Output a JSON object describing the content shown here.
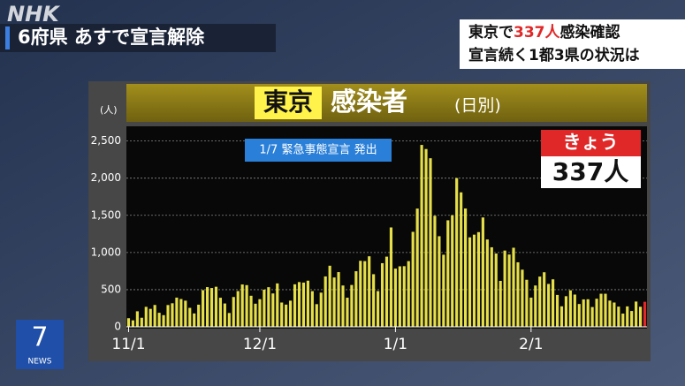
{
  "logo": "NHK",
  "banner": "6府県 あすで宣言解除",
  "headline": {
    "line1": {
      "before": "東京で",
      "highlight": "337人",
      "after": "感染確認"
    },
    "line2": "宣言続く1都3県の状況は"
  },
  "program_logo": {
    "number": "7",
    "label": "NEWS"
  },
  "chart_data": {
    "type": "bar",
    "title": {
      "place": "東京",
      "main": "感染者",
      "sub": "(日別)"
    },
    "y_label": "(人)",
    "annotation": "1/7 緊急事態宣言 発出",
    "badge": {
      "label": "きょう",
      "value": "337人"
    },
    "categories": [
      "11/1",
      null,
      null,
      null,
      null,
      null,
      null,
      null,
      null,
      null,
      null,
      null,
      null,
      null,
      null,
      null,
      null,
      null,
      null,
      null,
      null,
      null,
      null,
      null,
      null,
      null,
      null,
      null,
      null,
      null,
      "12/1",
      null,
      null,
      null,
      null,
      null,
      null,
      null,
      null,
      null,
      null,
      null,
      null,
      null,
      null,
      null,
      null,
      null,
      null,
      null,
      null,
      null,
      null,
      null,
      null,
      null,
      null,
      null,
      null,
      null,
      null,
      "1/1",
      null,
      null,
      null,
      null,
      null,
      null,
      null,
      null,
      null,
      null,
      null,
      null,
      null,
      null,
      null,
      null,
      null,
      null,
      null,
      null,
      null,
      null,
      null,
      null,
      null,
      null,
      null,
      null,
      null,
      null,
      "2/1",
      null,
      null,
      null,
      null,
      null,
      null,
      null,
      null,
      null,
      null,
      null,
      null,
      null,
      null,
      null,
      null,
      null,
      null,
      null,
      null,
      null,
      null,
      null,
      null,
      null,
      null
    ],
    "series": [
      {
        "name": "感染者",
        "color": "#e6df4a",
        "values": [
          116,
          87,
          209,
          122,
          269,
          242,
          294,
          189,
          157,
          293,
          317,
          393,
          374,
          352,
          255,
          180,
          298,
          493,
          534,
          522,
          539,
          391,
          314,
          186,
          401,
          481,
          570,
          561,
          418,
          311,
          372,
          500,
          533,
          449,
          584,
          327,
          299,
          352,
          572,
          602,
          595,
          621,
          480,
          305,
          460,
          678,
          822,
          664,
          736,
          556,
          392,
          563,
          748,
          888,
          884,
          949,
          708,
          481,
          856,
          944,
          1337,
          783,
          814,
          816,
          884,
          1278,
          1591,
          2447,
          2392,
          2268,
          1494,
          1219,
          970,
          1433,
          1502,
          2001,
          1809,
          1592,
          1204,
          1240,
          1274,
          1471,
          1175,
          1070,
          986,
          618,
          1026,
          973,
          1064,
          868,
          769,
          633,
          393,
          556,
          676,
          734,
          577,
          639,
          429,
          276,
          412,
          491,
          434,
          307,
          369,
          371,
          266,
          378,
          445,
          445,
          353,
          327,
          272,
          178,
          275,
          213,
          340,
          270,
          337
        ]
      }
    ],
    "highlight_last_color": "#e02828",
    "ylim": [
      0,
      2650
    ],
    "yticks": [
      0,
      500,
      {
        "value": 1000,
        "label": "1,000"
      },
      {
        "value": 1500,
        "label": "1,500"
      },
      {
        "value": 2000,
        "label": "2,000"
      },
      {
        "value": 2500,
        "label": "2,500"
      }
    ],
    "grid": true
  }
}
